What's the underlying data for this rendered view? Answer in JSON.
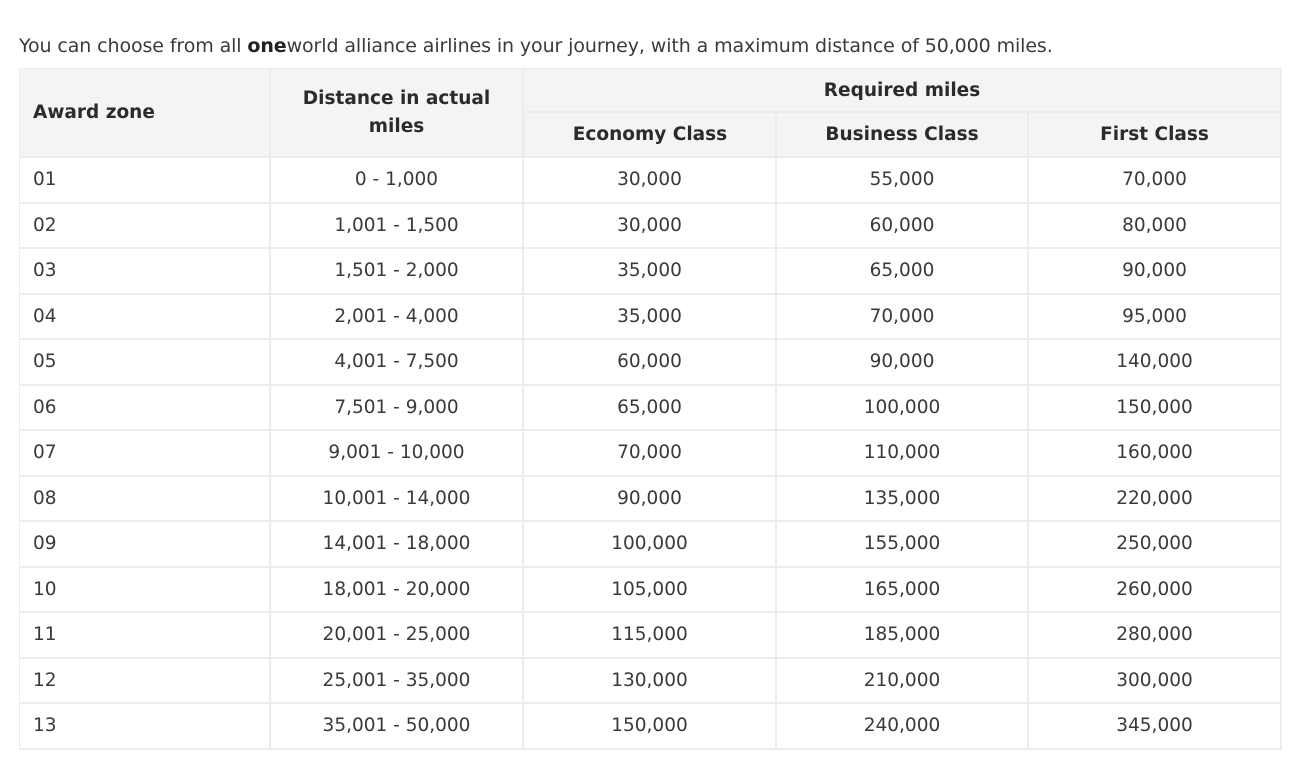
{
  "intro": {
    "before": "You can choose from all ",
    "bold": "one",
    "after": "world alliance airlines in your journey, with a maximum distance of 50,000 miles."
  },
  "table": {
    "headers": {
      "award_zone": "Award zone",
      "distance": "Distance in actual miles",
      "required_miles": "Required miles",
      "economy": "Economy Class",
      "business": "Business Class",
      "first": "First Class"
    },
    "rows": [
      {
        "zone": "01",
        "distance": "0 - 1,000",
        "economy": "30,000",
        "business": "55,000",
        "first": "70,000"
      },
      {
        "zone": "02",
        "distance": "1,001 - 1,500",
        "economy": "30,000",
        "business": "60,000",
        "first": "80,000"
      },
      {
        "zone": "03",
        "distance": "1,501 - 2,000",
        "economy": "35,000",
        "business": "65,000",
        "first": "90,000"
      },
      {
        "zone": "04",
        "distance": "2,001 - 4,000",
        "economy": "35,000",
        "business": "70,000",
        "first": "95,000"
      },
      {
        "zone": "05",
        "distance": "4,001 - 7,500",
        "economy": "60,000",
        "business": "90,000",
        "first": "140,000"
      },
      {
        "zone": "06",
        "distance": "7,501 - 9,000",
        "economy": "65,000",
        "business": "100,000",
        "first": "150,000"
      },
      {
        "zone": "07",
        "distance": "9,001 - 10,000",
        "economy": "70,000",
        "business": "110,000",
        "first": "160,000"
      },
      {
        "zone": "08",
        "distance": "10,001 - 14,000",
        "economy": "90,000",
        "business": "135,000",
        "first": "220,000"
      },
      {
        "zone": "09",
        "distance": "14,001 - 18,000",
        "economy": "100,000",
        "business": "155,000",
        "first": "250,000"
      },
      {
        "zone": "10",
        "distance": "18,001 - 20,000",
        "economy": "105,000",
        "business": "165,000",
        "first": "260,000"
      },
      {
        "zone": "11",
        "distance": "20,001 - 25,000",
        "economy": "115,000",
        "business": "185,000",
        "first": "280,000"
      },
      {
        "zone": "12",
        "distance": "25,001 - 35,000",
        "economy": "130,000",
        "business": "210,000",
        "first": "300,000"
      },
      {
        "zone": "13",
        "distance": "35,001 - 50,000",
        "economy": "150,000",
        "business": "240,000",
        "first": "345,000"
      }
    ]
  }
}
